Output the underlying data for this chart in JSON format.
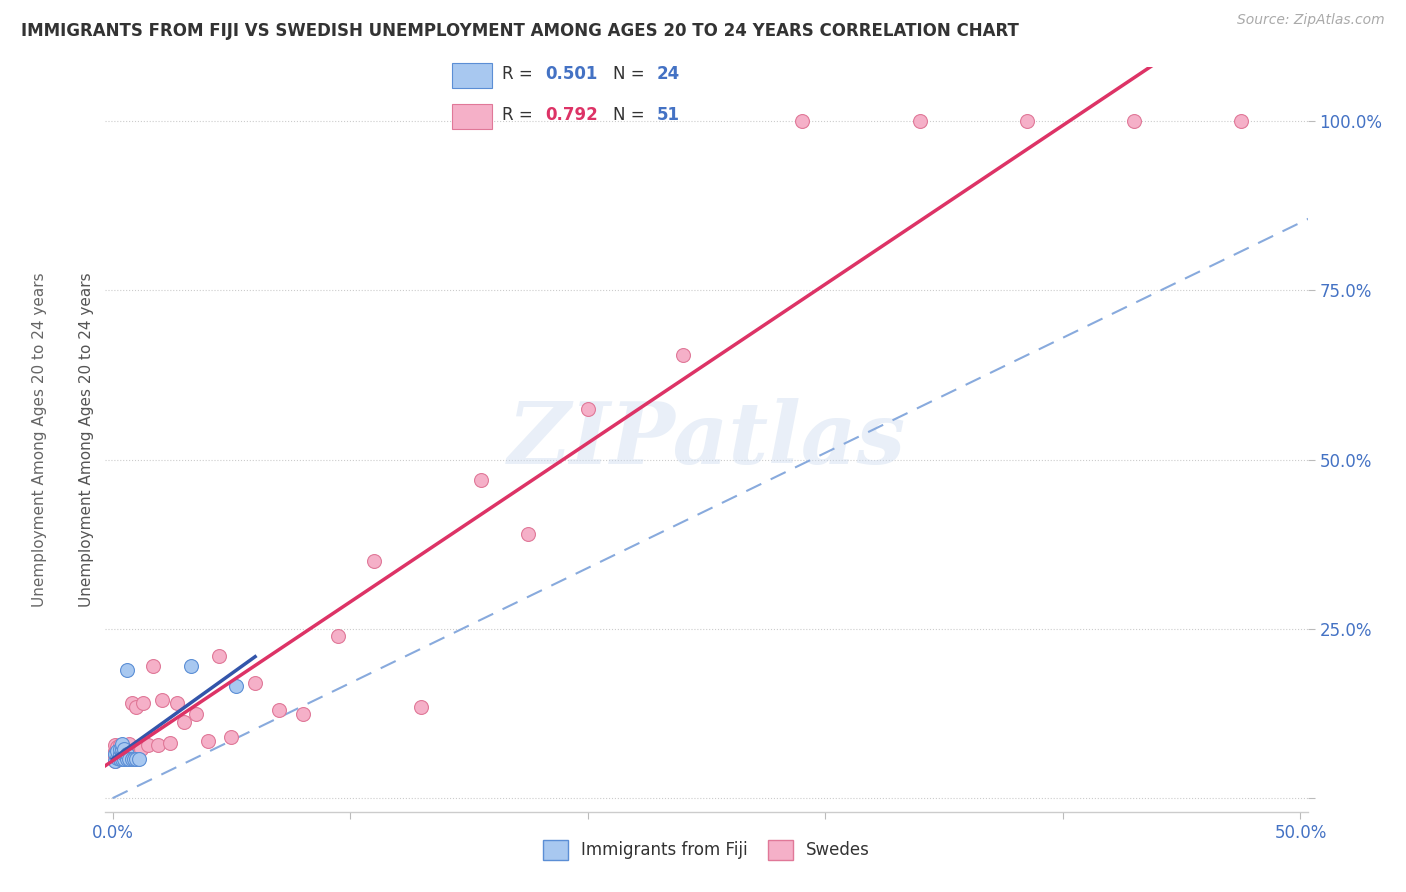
{
  "title": "IMMIGRANTS FROM FIJI VS SWEDISH UNEMPLOYMENT AMONG AGES 20 TO 24 YEARS CORRELATION CHART",
  "source": "Source: ZipAtlas.com",
  "ylabel": "Unemployment Among Ages 20 to 24 years",
  "xlim": [
    -0.003,
    0.503
  ],
  "ylim": [
    -0.02,
    1.08
  ],
  "yticks": [
    0.0,
    0.25,
    0.5,
    0.75,
    1.0
  ],
  "ytick_labels": [
    "",
    "25.0%",
    "50.0%",
    "75.0%",
    "100.0%"
  ],
  "xticks": [
    0.0,
    0.1,
    0.2,
    0.3,
    0.4,
    0.5
  ],
  "xtick_labels": [
    "0.0%",
    "",
    "",
    "",
    "",
    "50.0%"
  ],
  "fiji_R": "0.501",
  "fiji_N": "24",
  "swedes_R": "0.792",
  "swedes_N": "51",
  "fiji_color": "#a8c8f0",
  "fiji_edge_color": "#5b8ed5",
  "swedes_color": "#f5b0c8",
  "swedes_edge_color": "#e07898",
  "fiji_line_color": "#3355aa",
  "swedes_line_color": "#dd3366",
  "dashed_line_color": "#88aadd",
  "background_color": "#ffffff",
  "watermark": "ZIPatlas",
  "fiji_x": [
    0.001,
    0.001,
    0.002,
    0.002,
    0.003,
    0.003,
    0.003,
    0.004,
    0.004,
    0.004,
    0.004,
    0.005,
    0.005,
    0.005,
    0.006,
    0.006,
    0.006,
    0.007,
    0.008,
    0.009,
    0.01,
    0.011,
    0.033,
    0.052
  ],
  "fiji_y": [
    0.055,
    0.065,
    0.06,
    0.07,
    0.058,
    0.065,
    0.072,
    0.058,
    0.065,
    0.072,
    0.08,
    0.058,
    0.065,
    0.072,
    0.058,
    0.065,
    0.19,
    0.058,
    0.058,
    0.058,
    0.058,
    0.058,
    0.195,
    0.165
  ],
  "swedes_x": [
    0.001,
    0.001,
    0.001,
    0.001,
    0.002,
    0.002,
    0.002,
    0.003,
    0.003,
    0.003,
    0.004,
    0.004,
    0.004,
    0.005,
    0.005,
    0.006,
    0.007,
    0.007,
    0.008,
    0.008,
    0.009,
    0.01,
    0.01,
    0.012,
    0.013,
    0.015,
    0.017,
    0.019,
    0.021,
    0.024,
    0.027,
    0.03,
    0.035,
    0.04,
    0.045,
    0.05,
    0.06,
    0.07,
    0.08,
    0.095,
    0.11,
    0.13,
    0.155,
    0.175,
    0.2,
    0.24,
    0.29,
    0.34,
    0.385,
    0.43,
    0.475
  ],
  "swedes_y": [
    0.055,
    0.062,
    0.07,
    0.078,
    0.058,
    0.065,
    0.075,
    0.058,
    0.068,
    0.078,
    0.058,
    0.068,
    0.076,
    0.06,
    0.075,
    0.068,
    0.062,
    0.08,
    0.062,
    0.14,
    0.062,
    0.062,
    0.135,
    0.072,
    0.14,
    0.078,
    0.195,
    0.078,
    0.145,
    0.082,
    0.14,
    0.112,
    0.125,
    0.085,
    0.21,
    0.09,
    0.17,
    0.13,
    0.125,
    0.24,
    0.35,
    0.135,
    0.47,
    0.39,
    0.575,
    0.655,
    1.0,
    1.0,
    1.0,
    1.0,
    1.0
  ]
}
